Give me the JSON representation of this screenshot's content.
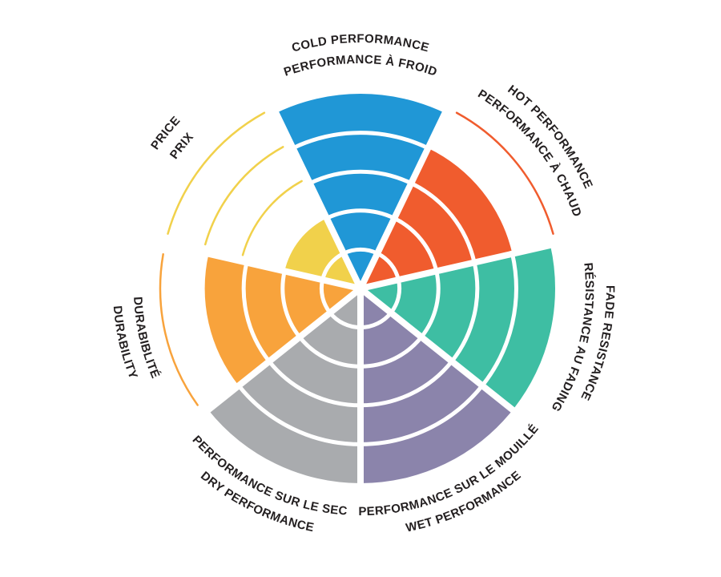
{
  "page": {
    "background": "#FFFFFF",
    "text_color": "#231F20"
  },
  "chart_data": {
    "type": "pie",
    "subtype": "polar-sector-rating-wheel",
    "title": "",
    "legend_position": "none",
    "grid": "concentric-rings",
    "max_level": 5,
    "ring_count": 5,
    "sector_count": 7,
    "sectors": [
      {
        "id": "cold",
        "label_en": "COLD PERFORMANCE",
        "label_fr": "PERFORMANCE À FROID",
        "value": 5,
        "color": "#2097D6"
      },
      {
        "id": "hot",
        "label_en": "HOT PERFORMANCE",
        "label_fr": "PERFORMANCE À CHAUD",
        "value": 4,
        "color": "#F05C2E"
      },
      {
        "id": "fade",
        "label_en": "FADE RESISTANCE",
        "label_fr": "RÉSISTANCE AU FADING",
        "value": 5,
        "color": "#3EBEA3"
      },
      {
        "id": "wet",
        "label_en": "WET PERFORMANCE",
        "label_fr": "PERFORMANCE SUR LE MOUILLÉ",
        "value": 5,
        "color": "#8B84AB"
      },
      {
        "id": "dry",
        "label_en": "DRY PERFORMANCE",
        "label_fr": "PERFORMANCE SUR LE SEC",
        "value": 5,
        "color": "#A9ABAE"
      },
      {
        "id": "durability",
        "label_en": "DURABILITY",
        "label_fr": "DURABIBLITÉ",
        "value": 4,
        "color": "#F8A33C"
      },
      {
        "id": "price",
        "label_en": "PRICE",
        "label_fr": "PRIX",
        "value": 2,
        "color": "#F1D14B"
      }
    ]
  }
}
